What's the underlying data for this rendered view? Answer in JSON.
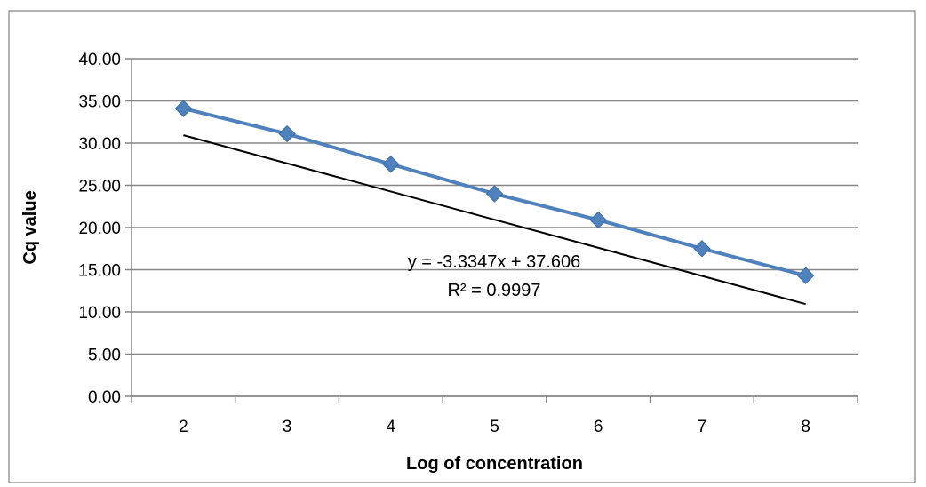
{
  "chart_data": {
    "type": "scatter",
    "title": "",
    "xlabel": "Log of concentration",
    "ylabel": "Cq value",
    "xlim": [
      1.5,
      8.5
    ],
    "ylim": [
      0,
      40
    ],
    "x_ticks": [
      "2",
      "3",
      "4",
      "5",
      "6",
      "7",
      "8"
    ],
    "y_ticks": [
      "0.00",
      "5.00",
      "10.00",
      "15.00",
      "20.00",
      "25.00",
      "30.00",
      "35.00",
      "40.00"
    ],
    "grid": "horizontal",
    "legend": "none",
    "series": [
      {
        "x": [
          2,
          3,
          4,
          5,
          6,
          7,
          8
        ],
        "y": [
          34.1,
          31.1,
          27.5,
          24.0,
          20.9,
          17.5,
          14.3
        ],
        "color": "#4F81BD",
        "marker": "diamond",
        "connected": true
      }
    ],
    "trendline": {
      "type": "linear",
      "slope": -3.3347,
      "intercept": 37.606,
      "color": "#000000",
      "equation_text": "y = -3.3347x + 37.606",
      "r2_text": "R² = 0.9997"
    }
  }
}
